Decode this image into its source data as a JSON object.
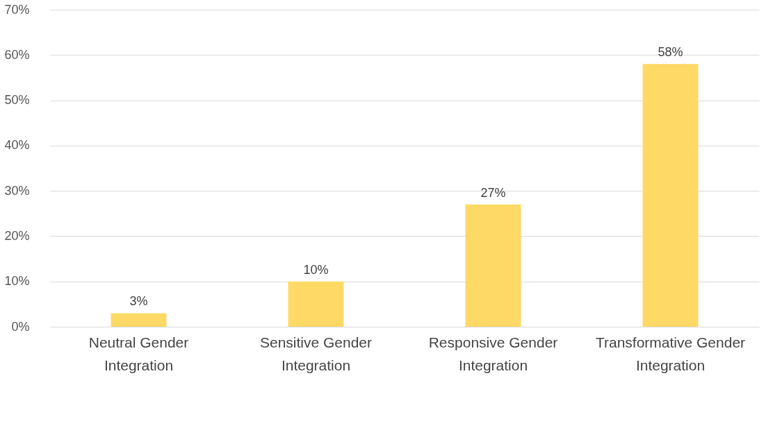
{
  "chart_data": {
    "type": "bar",
    "categories": [
      "Neutral Gender Integration",
      "Sensitive Gender Integration",
      "Responsive Gender Integration",
      "Transformative Gender Integration"
    ],
    "values": [
      3,
      10,
      27,
      58
    ],
    "color": "#ffd966",
    "value_labels": [
      "3%",
      "10%",
      "27%",
      "58%"
    ],
    "ylim": [
      0,
      70
    ],
    "yticks": [
      {
        "value": 0,
        "label": "0%"
      },
      {
        "value": 10,
        "label": "10%"
      },
      {
        "value": 20,
        "label": "20%"
      },
      {
        "value": 30,
        "label": "30%"
      },
      {
        "value": 40,
        "label": "40%"
      },
      {
        "value": 50,
        "label": "50%"
      },
      {
        "value": 60,
        "label": "60%"
      },
      {
        "value": 70,
        "label": "70%"
      }
    ],
    "grid": "y"
  }
}
